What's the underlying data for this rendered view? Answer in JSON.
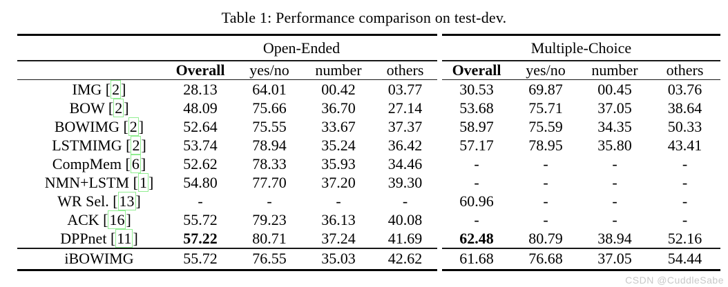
{
  "caption": "Table 1: Performance comparison on test-dev.",
  "watermark": "CSDN @CuddleSabe",
  "colors": {
    "citation_box": "#90ee90",
    "rule": "#000000",
    "watermark": "#c8c8c8"
  },
  "table": {
    "groups": {
      "open_ended": "Open-Ended",
      "multiple_choice": "Multiple-Choice"
    },
    "columns": {
      "overall": "Overall",
      "yesno": "yes/no",
      "number": "number",
      "others": "others"
    },
    "rows": [
      {
        "pre": "IMG [",
        "cite": "2",
        "post": "]",
        "oe": [
          "28.13",
          "64.01",
          "00.42",
          "03.77"
        ],
        "mc": [
          "30.53",
          "69.87",
          "00.45",
          "03.76"
        ]
      },
      {
        "pre": "BOW [",
        "cite": "2",
        "post": "]",
        "oe": [
          "48.09",
          "75.66",
          "36.70",
          "27.14"
        ],
        "mc": [
          "53.68",
          "75.71",
          "37.05",
          "38.64"
        ]
      },
      {
        "pre": "BOWIMG [",
        "cite": "2",
        "post": "]",
        "oe": [
          "52.64",
          "75.55",
          "33.67",
          "37.37"
        ],
        "mc": [
          "58.97",
          "75.59",
          "34.35",
          "50.33"
        ]
      },
      {
        "pre": "LSTMIMG [",
        "cite": "2",
        "post": "]",
        "oe": [
          "53.74",
          "78.94",
          "35.24",
          "36.42"
        ],
        "mc": [
          "57.17",
          "78.95",
          "35.80",
          "43.41"
        ]
      },
      {
        "pre": "CompMem [",
        "cite": "6",
        "post": "]",
        "oe": [
          "52.62",
          "78.33",
          "35.93",
          "34.46"
        ],
        "mc": [
          "-",
          "-",
          "-",
          "-"
        ]
      },
      {
        "pre": "NMN+LSTM [",
        "cite": "1",
        "post": "]",
        "oe": [
          "54.80",
          "77.70",
          "37.20",
          "39.30"
        ],
        "mc": [
          "-",
          "-",
          "-",
          "-"
        ]
      },
      {
        "pre": "WR Sel. [",
        "cite": "13",
        "post": "]",
        "oe": [
          "-",
          "-",
          "-",
          "-"
        ],
        "mc": [
          "60.96",
          "-",
          "-",
          "-"
        ]
      },
      {
        "pre": "ACK [",
        "cite": "16",
        "post": "]",
        "oe": [
          "55.72",
          "79.23",
          "36.13",
          "40.08"
        ],
        "mc": [
          "-",
          "-",
          "-",
          "-"
        ]
      },
      {
        "pre": "DPPnet [",
        "cite": "11",
        "post": "]",
        "oe": [
          "57.22",
          "80.71",
          "37.24",
          "41.69"
        ],
        "mc": [
          "62.48",
          "80.79",
          "38.94",
          "52.16"
        ]
      },
      {
        "pre": "iBOWIMG",
        "cite": "",
        "post": "",
        "oe": [
          "55.72",
          "76.55",
          "35.03",
          "42.62"
        ],
        "mc": [
          "61.68",
          "76.68",
          "37.05",
          "54.44"
        ]
      }
    ]
  }
}
